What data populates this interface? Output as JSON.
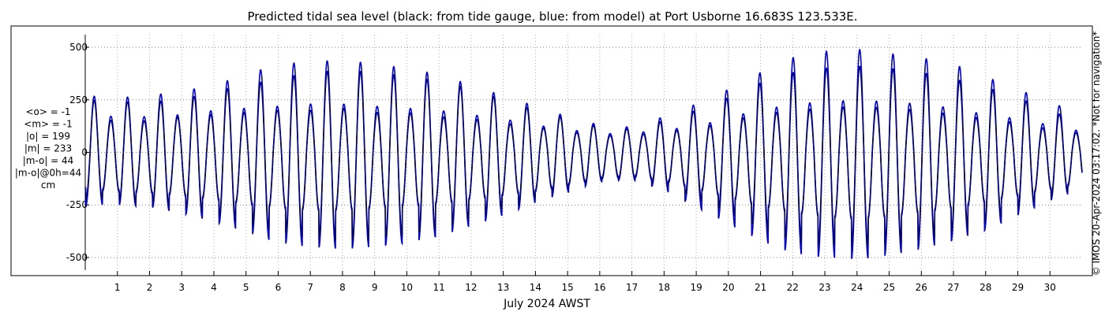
{
  "chart_data": {
    "type": "line",
    "title": "Predicted tidal sea level (black: from tide gauge, blue: from model) at Port Usborne 16.683S 123.533E.",
    "xlabel": "July 2024 AWST",
    "ylabel": "",
    "x_ticks": [
      "1",
      "2",
      "3",
      "4",
      "5",
      "6",
      "7",
      "8",
      "9",
      "10",
      "11",
      "12",
      "13",
      "14",
      "15",
      "16",
      "17",
      "18",
      "19",
      "20",
      "21",
      "22",
      "23",
      "24",
      "25",
      "26",
      "27",
      "28",
      "29",
      "30"
    ],
    "xlim": [
      0.0,
      31.0
    ],
    "y_ticks": [
      "500",
      "250",
      "0",
      "-250",
      "-500"
    ],
    "ylim": [
      -560,
      560
    ],
    "grid": "dotted",
    "stats_lines": [
      "<o> = -1",
      "<m> = -1",
      "|o| = 199",
      "|m| = 233",
      "|m-o| = 44",
      "|m-o|@0h=44",
      "cm"
    ],
    "credit": "© IMOS 20-Apr-2024 03:17:02. *Not for navigation*",
    "series": [
      {
        "name": "tide gauge",
        "color": "#000080",
        "envelope": {
          "day": [
            0.0,
            1.0,
            2.0,
            3.0,
            4.0,
            5.0,
            6.0,
            7.0,
            8.0,
            9.0,
            10.0,
            11.0,
            12.0,
            13.0,
            14.0,
            15.0,
            16.0,
            17.0,
            18.0,
            19.0,
            20.0,
            21.0,
            22.0,
            23.0,
            24.0,
            25.0,
            26.0,
            27.0,
            28.0,
            29.0,
            30.0,
            31.0
          ],
          "high_max": [
            250,
            240,
            240,
            250,
            290,
            320,
            350,
            380,
            390,
            380,
            360,
            340,
            300,
            250,
            200,
            160,
            120,
            110,
            150,
            200,
            260,
            330,
            380,
            400,
            410,
            400,
            380,
            350,
            310,
            260,
            200,
            140
          ],
          "high_min": [
            160,
            150,
            150,
            170,
            180,
            190,
            200,
            200,
            210,
            190,
            190,
            170,
            160,
            140,
            120,
            100,
            80,
            80,
            100,
            110,
            150,
            180,
            200,
            210,
            220,
            210,
            200,
            180,
            160,
            140,
            110,
            90
          ],
          "low_min": [
            -220,
            -230,
            -240,
            -260,
            -300,
            -340,
            -380,
            -410,
            -420,
            -410,
            -390,
            -360,
            -320,
            -270,
            -220,
            -170,
            -130,
            -120,
            -160,
            -220,
            -290,
            -360,
            -420,
            -440,
            -450,
            -440,
            -420,
            -380,
            -330,
            -270,
            -210,
            -160
          ],
          "low_max": [
            -170,
            -180,
            -190,
            -200,
            -220,
            -240,
            -260,
            -270,
            -270,
            -260,
            -250,
            -240,
            -220,
            -200,
            -180,
            -150,
            -120,
            -110,
            -130,
            -170,
            -210,
            -250,
            -280,
            -300,
            -310,
            -300,
            -280,
            -260,
            -230,
            -200,
            -170,
            -140
          ]
        }
      },
      {
        "name": "model",
        "color": "#0000dd",
        "envelope": {
          "day": [
            0.0,
            1.0,
            2.0,
            3.0,
            4.0,
            5.0,
            6.0,
            7.0,
            8.0,
            9.0,
            10.0,
            11.0,
            12.0,
            13.0,
            14.0,
            15.0,
            16.0,
            17.0,
            18.0,
            19.0,
            20.0,
            21.0,
            22.0,
            23.0,
            24.0,
            25.0,
            26.0,
            27.0,
            28.0,
            29.0,
            30.0,
            31.0
          ],
          "high_max": [
            270,
            260,
            270,
            290,
            320,
            370,
            420,
            430,
            440,
            420,
            400,
            370,
            320,
            270,
            220,
            170,
            130,
            120,
            170,
            230,
            300,
            380,
            450,
            480,
            490,
            470,
            450,
            420,
            360,
            300,
            240,
            180
          ],
          "high_min": [
            180,
            170,
            170,
            180,
            200,
            210,
            220,
            230,
            230,
            220,
            210,
            200,
            180,
            160,
            130,
            110,
            90,
            90,
            110,
            120,
            170,
            200,
            230,
            240,
            250,
            240,
            230,
            210,
            180,
            160,
            130,
            100
          ],
          "low_min": [
            -250,
            -250,
            -260,
            -290,
            -330,
            -380,
            -430,
            -450,
            -460,
            -450,
            -430,
            -400,
            -350,
            -300,
            -240,
            -190,
            -140,
            -130,
            -180,
            -260,
            -340,
            -420,
            -480,
            -500,
            -510,
            -490,
            -460,
            -420,
            -370,
            -300,
            -230,
            -170
          ],
          "low_max": [
            -180,
            -190,
            -200,
            -210,
            -230,
            -250,
            -270,
            -280,
            -280,
            -270,
            -260,
            -250,
            -230,
            -210,
            -190,
            -160,
            -130,
            -120,
            -140,
            -180,
            -220,
            -260,
            -290,
            -310,
            -320,
            -310,
            -290,
            -270,
            -240,
            -210,
            -180,
            -150
          ]
        }
      }
    ]
  }
}
